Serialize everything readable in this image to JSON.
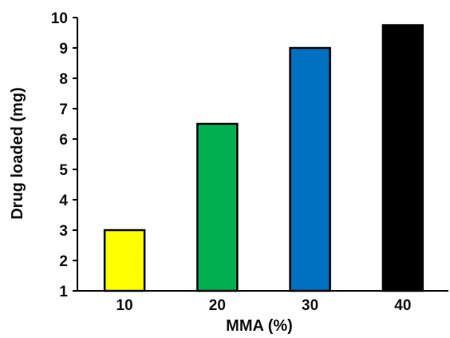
{
  "chart_data": {
    "type": "bar",
    "title": "",
    "xlabel": "MMA (%)",
    "ylabel": "Drug loaded (mg)",
    "categories": [
      "10",
      "20",
      "30",
      "40"
    ],
    "values": [
      3.0,
      6.5,
      9.0,
      9.75
    ],
    "bar_colors": [
      "#ffff00",
      "#00b050",
      "#0070c0",
      "#000000"
    ],
    "ylim": [
      1,
      10
    ],
    "yticks": [
      "1",
      "2",
      "3",
      "4",
      "5",
      "6",
      "7",
      "8",
      "9",
      "10"
    ],
    "grid": false,
    "legend": "none"
  }
}
